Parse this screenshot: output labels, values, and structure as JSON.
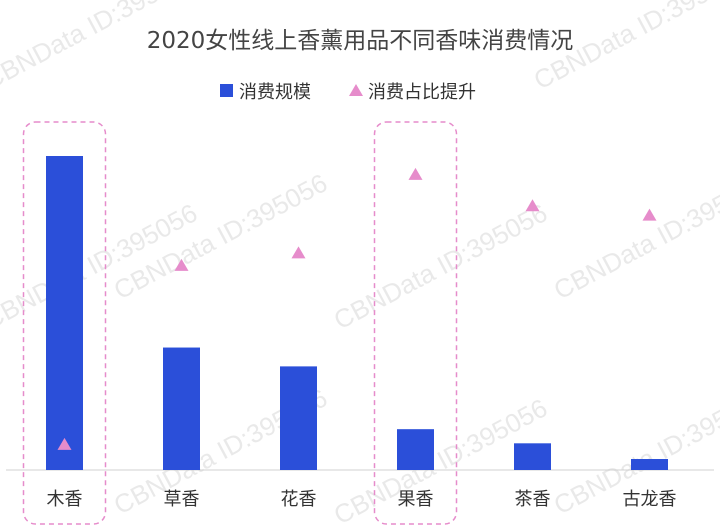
{
  "chart_data": {
    "type": "bar",
    "title": "2020女性线上香薰用品不同香味消费情况",
    "categories": [
      "木香",
      "草香",
      "花香",
      "果香",
      "茶香",
      "古龙香"
    ],
    "series": [
      {
        "name": "消费规模",
        "type": "bar",
        "color": "#2b4fd9",
        "values": [
          100,
          39,
          33,
          13,
          8.5,
          3.5
        ]
      },
      {
        "name": "消费占比提升",
        "type": "marker",
        "color": "#e68ccb",
        "values": [
          8,
          65,
          69,
          94,
          84,
          81
        ]
      }
    ],
    "ylim": [
      0,
      100
    ],
    "grid": false,
    "legend": "top",
    "highlighted_categories": [
      "木香",
      "果香"
    ],
    "watermark": "CBNData ID:395056"
  }
}
